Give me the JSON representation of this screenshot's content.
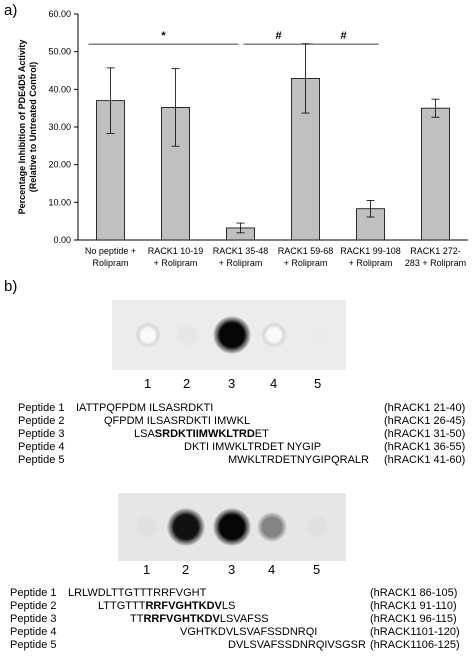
{
  "panel_a_label": "a)",
  "panel_b_label": "b)",
  "chart_data": {
    "type": "bar",
    "ylabel": "Percentage Inhibition of PDE4D5 Activity",
    "ylabel2": "(Relative to Untreated Control)",
    "ylim": [
      0,
      60
    ],
    "yticks": [
      "0.00",
      "10.00",
      "20.00",
      "30.00",
      "40.00",
      "50.00",
      "60.00"
    ],
    "categories": [
      [
        "No peptide +",
        "Rolipram"
      ],
      [
        "RACK1 10-19",
        "+ Rolipram"
      ],
      [
        "RACK1 35-48",
        "+ Rolipram"
      ],
      [
        "RACK1 59-68",
        "+ Rolipram"
      ],
      [
        "RACK1 99-108",
        "+ Rolipram"
      ],
      [
        "RACK1 272-",
        "283 + Rolipram"
      ]
    ],
    "values": [
      37.0,
      35.2,
      3.2,
      42.9,
      8.3,
      35.0
    ],
    "errors": [
      8.7,
      10.3,
      1.3,
      9.2,
      2.2,
      2.4
    ],
    "bar_color": "#c0c0c0",
    "significance": [
      {
        "from": 0,
        "to": 2,
        "symbol": "*",
        "level": 52
      },
      {
        "from": 2,
        "to": 3,
        "symbol": "#",
        "level": 52
      },
      {
        "from": 3,
        "to": 4,
        "symbol": "#",
        "level": 52
      }
    ]
  },
  "blot1": {
    "lanes": [
      "1",
      "2",
      "3",
      "4",
      "5"
    ],
    "intensity": [
      0.15,
      0.02,
      1.0,
      0.2,
      0.0
    ]
  },
  "table1": [
    {
      "name": "Peptide 1",
      "pre": "IATTPQFPDM ILSASRDKTI",
      "bold": "",
      "post": "",
      "ref": "(hRACK1 21-40)"
    },
    {
      "name": "Peptide 2",
      "pre": "QFPDM ILSASRDKTI IMWKL",
      "bold": "",
      "post": "",
      "ref": "(hRACK1 26-45)"
    },
    {
      "name": "Peptide 3",
      "pre": "LSA",
      "bold": "SRDKTIIMWKLTRD",
      "post": "ET",
      "ref": "(hRACK1 31-50)"
    },
    {
      "name": "Peptide 4",
      "pre": "DKTI IMWKLTRDET NYGIP",
      "bold": "",
      "post": "",
      "ref": "(hRACK1 36-55)"
    },
    {
      "name": "Peptide 5",
      "pre": "MWKLTRDETNYGIPQRALR",
      "bold": "",
      "post": "",
      "ref": "(hRACK1 41-60)"
    }
  ],
  "blot2": {
    "lanes": [
      "1",
      "2",
      "3",
      "4",
      "5"
    ],
    "intensity": [
      0.05,
      0.95,
      1.0,
      0.45,
      0.05
    ]
  },
  "table2": [
    {
      "name": "Peptide 1",
      "pre": "LRLWDLTTGTTTRRFVGHT",
      "bold": "",
      "post": "",
      "ref": "(hRACK1 86-105)"
    },
    {
      "name": "Peptide 2",
      "pre": "LTTGTTT",
      "bold": "RRFVGHTKDV",
      "post": "LS",
      "ref": "(hRACK1 91-110)"
    },
    {
      "name": "Peptide 3",
      "pre": "TT",
      "bold": "RRFVGHTKDV",
      "post": "LSVAFSS",
      "ref": "(hRACK1 96-115)"
    },
    {
      "name": "Peptide 4",
      "pre": "VGHTKDVLSVAFSSDNRQI",
      "bold": "",
      "post": "",
      "ref": "(hRACK1101-120)"
    },
    {
      "name": "Peptide 5",
      "pre": "DVLSVAFSSDNRQIVSGSR",
      "bold": "",
      "post": "",
      "ref": "(hRACK1106-125)"
    }
  ]
}
